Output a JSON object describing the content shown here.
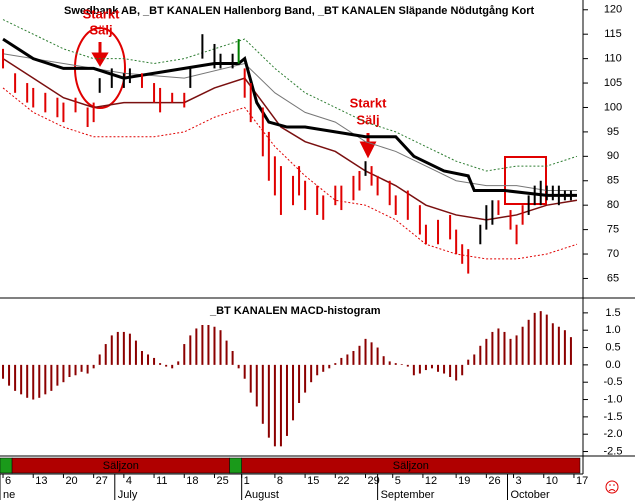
{
  "chart_data": [
    {
      "type": "range",
      "title": "Swedbank AB, _BT KANALEN Hallenborg Band, _BT KANALEN Släpande Nödutgång Kort",
      "xlim": [
        -0.5,
        95.5
      ],
      "ylim": [
        61,
        122
      ],
      "yticks": [
        65,
        70,
        75,
        80,
        85,
        90,
        95,
        100,
        105,
        110,
        115,
        120
      ],
      "bars": {
        "x": [
          0,
          2,
          4,
          5,
          7,
          9,
          10,
          12,
          14,
          15,
          16,
          18,
          20,
          21,
          23,
          25,
          26,
          28,
          30,
          31,
          33,
          35,
          36,
          38,
          39,
          40,
          41,
          43,
          44,
          45,
          46,
          48,
          49,
          50,
          52,
          53,
          55,
          56,
          58,
          59,
          60,
          61,
          62,
          64,
          65,
          67,
          69,
          70,
          72,
          74,
          75,
          76,
          77,
          79,
          80,
          81,
          82,
          84,
          85,
          86,
          87,
          88,
          89,
          90,
          91,
          92,
          93,
          94
        ],
        "high": [
          112,
          107,
          105,
          104,
          103,
          102,
          101,
          102,
          100,
          101,
          106,
          108,
          107,
          108,
          107,
          105,
          104,
          103,
          103,
          108,
          115,
          113,
          111,
          111,
          114,
          108,
          105,
          100,
          95,
          90,
          88,
          86,
          88,
          85,
          84,
          82,
          84,
          84,
          86,
          87,
          89,
          88,
          86,
          85,
          82,
          83,
          80,
          76,
          77,
          78,
          75,
          72,
          71,
          76,
          80,
          81,
          81,
          79,
          76,
          80,
          82,
          84,
          85,
          84,
          84,
          84,
          83,
          83
        ],
        "low": [
          108,
          103,
          101,
          100,
          99,
          98,
          97,
          99,
          96,
          97,
          103,
          104,
          104,
          105,
          104,
          101,
          99,
          101,
          100,
          104,
          110,
          108,
          108,
          108,
          109,
          102,
          97,
          90,
          85,
          82,
          78,
          80,
          82,
          79,
          78,
          77,
          80,
          79,
          81,
          83,
          86,
          84,
          82,
          80,
          78,
          77,
          74,
          72,
          72,
          73,
          70,
          68,
          66,
          72,
          75,
          76,
          78,
          75,
          72,
          76,
          78,
          80,
          80,
          81,
          81,
          80,
          81,
          81
        ],
        "colors": [
          "#e00000",
          "#e00000",
          "#e00000",
          "#e00000",
          "#e00000",
          "#e00000",
          "#e00000",
          "#e00000",
          "#e00000",
          "#e00000",
          "#000000",
          "#000000",
          "#000000",
          "#000000",
          "#e00000",
          "#e00000",
          "#e00000",
          "#e00000",
          "#e00000",
          "#000000",
          "#000000",
          "#000000",
          "#000000",
          "#000000",
          "#008000",
          "#e00000",
          "#e00000",
          "#e00000",
          "#e00000",
          "#e00000",
          "#e00000",
          "#e00000",
          "#e00000",
          "#e00000",
          "#e00000",
          "#e00000",
          "#e00000",
          "#e00000",
          "#e00000",
          "#e00000",
          "#000000",
          "#e00000",
          "#e00000",
          "#e00000",
          "#e00000",
          "#e00000",
          "#e00000",
          "#e00000",
          "#e00000",
          "#e00000",
          "#e00000",
          "#e00000",
          "#e00000",
          "#000000",
          "#000000",
          "#000000",
          "#e00000",
          "#e00000",
          "#e00000",
          "#e00000",
          "#000000",
          "#000000",
          "#000000",
          "#000000",
          "#000000",
          "#000000",
          "#000000",
          "#000000"
        ]
      },
      "lines": [
        {
          "x": [
            0,
            5,
            10,
            15,
            20,
            25,
            30,
            35,
            40,
            45,
            50,
            55,
            60,
            65,
            70,
            75,
            80,
            85,
            90,
            95
          ],
          "values": [
            118,
            115,
            112,
            110,
            110,
            109,
            110,
            112,
            114,
            108,
            103,
            100,
            97,
            95,
            92,
            89,
            87,
            88,
            88,
            90
          ],
          "color": "#2e7d32",
          "width": 1,
          "dash": "2,2"
        },
        {
          "x": [
            0,
            5,
            10,
            15,
            20,
            25,
            30,
            35,
            40,
            45,
            50,
            55,
            60,
            65,
            70,
            75,
            80,
            85,
            90,
            95
          ],
          "values": [
            104,
            99,
            96,
            94,
            94,
            94,
            95,
            98,
            100,
            92,
            86,
            81,
            80,
            77,
            72,
            70,
            69,
            69,
            70,
            72
          ],
          "color": "#e00000",
          "width": 1,
          "dash": "2,2"
        },
        {
          "x": [
            0,
            10,
            20,
            30,
            40,
            45,
            50,
            55,
            60,
            65,
            70,
            75,
            80,
            85,
            90,
            95
          ],
          "values": [
            111,
            109,
            107,
            106,
            109,
            103,
            99,
            97,
            93,
            91,
            88,
            85,
            84,
            84,
            83,
            83
          ],
          "color": "#777777",
          "width": 1,
          "dash": "none"
        },
        {
          "x": [
            0,
            5,
            10,
            15,
            20,
            25,
            30,
            35,
            40,
            43,
            46,
            50,
            55,
            60,
            65,
            70,
            75,
            80,
            85,
            90,
            95
          ],
          "values": [
            110,
            106,
            102,
            100,
            101,
            101,
            101,
            104,
            106,
            101,
            96,
            93,
            91,
            87,
            84,
            80,
            78,
            77,
            78,
            80,
            81
          ],
          "color": "#7a1010",
          "width": 1.5,
          "dash": "none"
        },
        {
          "x": [
            0,
            5,
            10,
            15,
            20,
            25,
            30,
            35,
            39,
            40,
            42,
            44,
            47,
            50,
            55,
            60,
            65,
            68,
            73,
            77,
            78,
            83,
            90,
            95
          ],
          "values": [
            114,
            110,
            108,
            108,
            106,
            107,
            108,
            109,
            109,
            110,
            101,
            97,
            96,
            96,
            95,
            94,
            94,
            90,
            87,
            86,
            83,
            83,
            82,
            82
          ],
          "color": "#000000",
          "width": 3,
          "dash": "none"
        }
      ],
      "annotations": [
        {
          "lines": [
            "Starkt",
            "Sälj"
          ]
        },
        {
          "lines": [
            "Starkt",
            "Sälj"
          ]
        }
      ]
    },
    {
      "type": "bar",
      "title": "_BT KANALEN MACD-histogram",
      "xlim": [
        -0.5,
        95.5
      ],
      "ylim": [
        -2.6,
        1.9
      ],
      "yticks": [
        1.5,
        {
          "value": 1,
          "label": "1.0"
        },
        0.5,
        {
          "value": 0,
          "label": "0.0"
        },
        -0.5,
        {
          "value": -1,
          "label": "-1.0"
        },
        -1.5,
        {
          "value": -2,
          "label": "-2.0"
        },
        -2.5
      ],
      "color": "#8b0000",
      "x": [
        0,
        1,
        2,
        3,
        4,
        5,
        6,
        7,
        8,
        9,
        10,
        11,
        12,
        13,
        14,
        15,
        16,
        17,
        18,
        19,
        20,
        21,
        22,
        23,
        24,
        25,
        26,
        27,
        28,
        29,
        30,
        31,
        32,
        33,
        34,
        35,
        36,
        37,
        38,
        39,
        40,
        41,
        42,
        43,
        44,
        45,
        46,
        47,
        48,
        49,
        50,
        51,
        52,
        53,
        54,
        55,
        56,
        57,
        58,
        59,
        60,
        61,
        62,
        63,
        64,
        65,
        66,
        67,
        68,
        69,
        70,
        71,
        72,
        73,
        74,
        75,
        76,
        77,
        78,
        79,
        80,
        81,
        82,
        83,
        84,
        85,
        86,
        87,
        88,
        89,
        90,
        91,
        92,
        93,
        94
      ],
      "values": [
        -0.4,
        -0.6,
        -0.75,
        -0.85,
        -0.95,
        -1.0,
        -0.95,
        -0.85,
        -0.75,
        -0.6,
        -0.5,
        -0.35,
        -0.3,
        -0.2,
        -0.25,
        -0.1,
        0.3,
        0.6,
        0.85,
        0.95,
        0.95,
        0.9,
        0.7,
        0.4,
        0.3,
        0.2,
        0.05,
        -0.05,
        -0.1,
        0.1,
        0.6,
        0.85,
        1.05,
        1.15,
        1.15,
        1.1,
        1.0,
        0.7,
        0.4,
        -0.1,
        -0.4,
        -0.8,
        -1.2,
        -1.7,
        -2.1,
        -2.35,
        -2.35,
        -2.05,
        -1.6,
        -1.1,
        -0.8,
        -0.5,
        -0.3,
        -0.2,
        -0.1,
        0.05,
        0.2,
        0.3,
        0.4,
        0.55,
        0.75,
        0.65,
        0.5,
        0.25,
        0.1,
        0.05,
        0.02,
        -0.05,
        -0.3,
        -0.25,
        -0.15,
        -0.1,
        -0.2,
        -0.25,
        -0.35,
        -0.45,
        -0.3,
        0.15,
        0.3,
        0.55,
        0.75,
        0.95,
        1.05,
        0.95,
        0.75,
        0.85,
        1.1,
        1.3,
        1.5,
        1.55,
        1.45,
        1.2,
        1.1,
        1.0,
        0.8
      ],
      "xticks": [
        {
          "value": 0,
          "label": "6"
        },
        {
          "value": 5,
          "label": "13"
        },
        {
          "value": 10,
          "label": "20"
        },
        {
          "value": 15,
          "label": "27"
        },
        {
          "value": 20,
          "label": "4"
        },
        {
          "value": 25,
          "label": "11"
        },
        {
          "value": 30,
          "label": "18"
        },
        {
          "value": 35,
          "label": "25"
        },
        {
          "value": 39.5,
          "label": "1"
        },
        {
          "value": 45,
          "label": "8"
        },
        {
          "value": 50,
          "label": "15"
        },
        {
          "value": 55,
          "label": "22"
        },
        {
          "value": 60,
          "label": "29"
        },
        {
          "value": 64.5,
          "label": "5"
        },
        {
          "value": 69.5,
          "label": "12"
        },
        {
          "value": 75,
          "label": "19"
        },
        {
          "value": 80,
          "label": "26"
        },
        {
          "value": 84.5,
          "label": "3"
        },
        {
          "value": 89.5,
          "label": "10"
        },
        {
          "value": 94.5,
          "label": "17"
        }
      ],
      "month_labels": [
        {
          "value": -0.5,
          "label": "ne"
        },
        {
          "value": 18.5,
          "label": "July"
        },
        {
          "value": 39.5,
          "label": "August"
        },
        {
          "value": 62,
          "label": "September"
        },
        {
          "value": 83.5,
          "label": "October"
        }
      ],
      "zones": [
        {
          "start": -0.5,
          "end": 1.5,
          "color": "#1a9a1a"
        },
        {
          "start": 1.5,
          "end": 37.5,
          "color": "#b00000",
          "label": "Säljzon"
        },
        {
          "start": 37.5,
          "end": 39.5,
          "color": "#1a9a1a"
        },
        {
          "start": 39.5,
          "end": 95.5,
          "color": "#b00000",
          "label": "Säljzon"
        }
      ]
    }
  ]
}
